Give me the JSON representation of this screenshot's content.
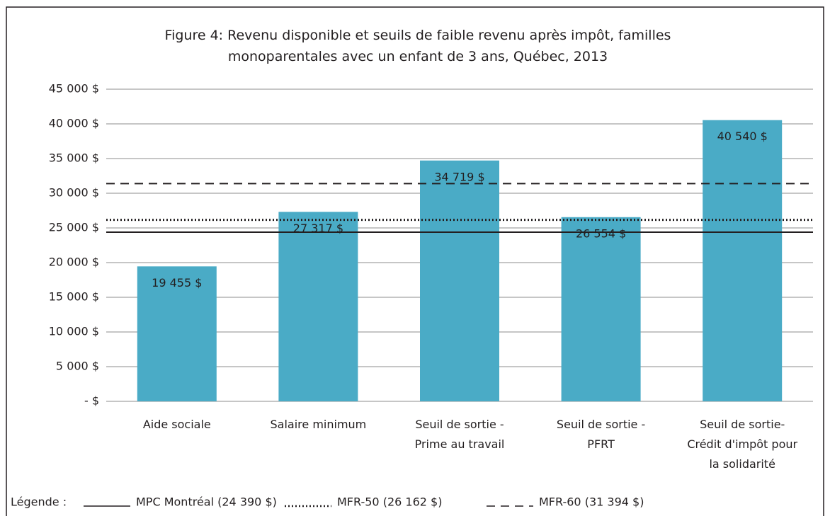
{
  "chart_data": {
    "type": "bar",
    "title": "Figure 4: Revenu disponible et seuils de faible revenu après impôt, familles monoparentales avec un enfant de 3 ans, Québec, 2013",
    "categories": [
      "Aide sociale",
      "Salaire minimum",
      "Seuil de sortie - Prime au travail",
      "Seuil de sortie - PFRT",
      "Seuil de sortie- Crédit d'impôt pour la solidarité"
    ],
    "values": [
      19455,
      27317,
      34719,
      26554,
      40540
    ],
    "value_labels": [
      "19 455 $",
      "27 317 $",
      "34 719 $",
      "26 554 $",
      "40 540 $"
    ],
    "color": "#4aabc6",
    "ylim": [
      0,
      45000
    ],
    "yticks": [
      {
        "value": 0,
        "label": "-  $"
      },
      {
        "value": 5000,
        "label": "5 000 $"
      },
      {
        "value": 10000,
        "label": "10 000 $"
      },
      {
        "value": 15000,
        "label": "15 000 $"
      },
      {
        "value": 20000,
        "label": "20 000 $"
      },
      {
        "value": 25000,
        "label": "25 000 $"
      },
      {
        "value": 30000,
        "label": "30 000 $"
      },
      {
        "value": 35000,
        "label": "35 000 $"
      },
      {
        "value": 40000,
        "label": "40 000 $"
      },
      {
        "value": 45000,
        "label": "45 000 $"
      }
    ],
    "grid": true,
    "legend_title": "Légende :",
    "reference_lines": [
      {
        "name": "MPC Montréal (24 390 $)",
        "value": 24390,
        "style": "solid"
      },
      {
        "name": "MFR-50 (26 162 $)",
        "value": 26162,
        "style": "dotted"
      },
      {
        "name": "MFR-60 (31 394 $)",
        "value": 31394,
        "style": "dashed"
      }
    ]
  }
}
